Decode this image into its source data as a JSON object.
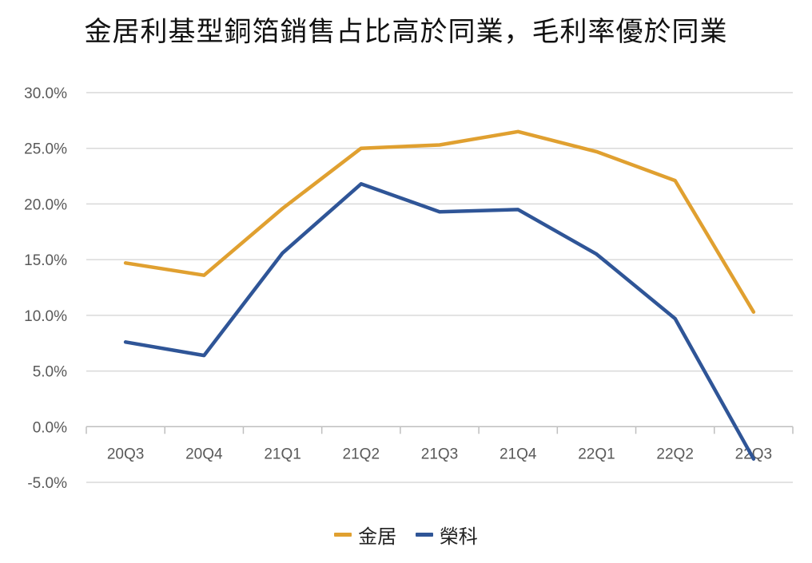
{
  "chart_data": {
    "type": "line",
    "title": "金居利基型銅箔銷售占比高於同業，毛利率優於同業",
    "xlabel": "",
    "ylabel": "",
    "categories": [
      "20Q3",
      "20Q4",
      "21Q1",
      "21Q2",
      "21Q3",
      "21Q4",
      "22Q1",
      "22Q2",
      "22Q3"
    ],
    "ylim": [
      -5,
      30
    ],
    "y_ticks": [
      30,
      25,
      20,
      15,
      10,
      5,
      0,
      -5
    ],
    "y_tick_labels": [
      "30.0%",
      "25.0%",
      "20.0%",
      "15.0%",
      "10.0%",
      "5.0%",
      "0.0%",
      "-5.0%"
    ],
    "grid": true,
    "legend_position": "bottom-center",
    "series": [
      {
        "name": "金居",
        "color": "#E0A030",
        "values": [
          14.7,
          13.6,
          19.6,
          25.0,
          25.3,
          26.5,
          24.7,
          22.1,
          10.3
        ]
      },
      {
        "name": "榮科",
        "color": "#2F5597",
        "values": [
          7.6,
          6.4,
          15.6,
          21.8,
          19.3,
          19.5,
          15.5,
          9.7,
          -2.9
        ]
      }
    ]
  }
}
